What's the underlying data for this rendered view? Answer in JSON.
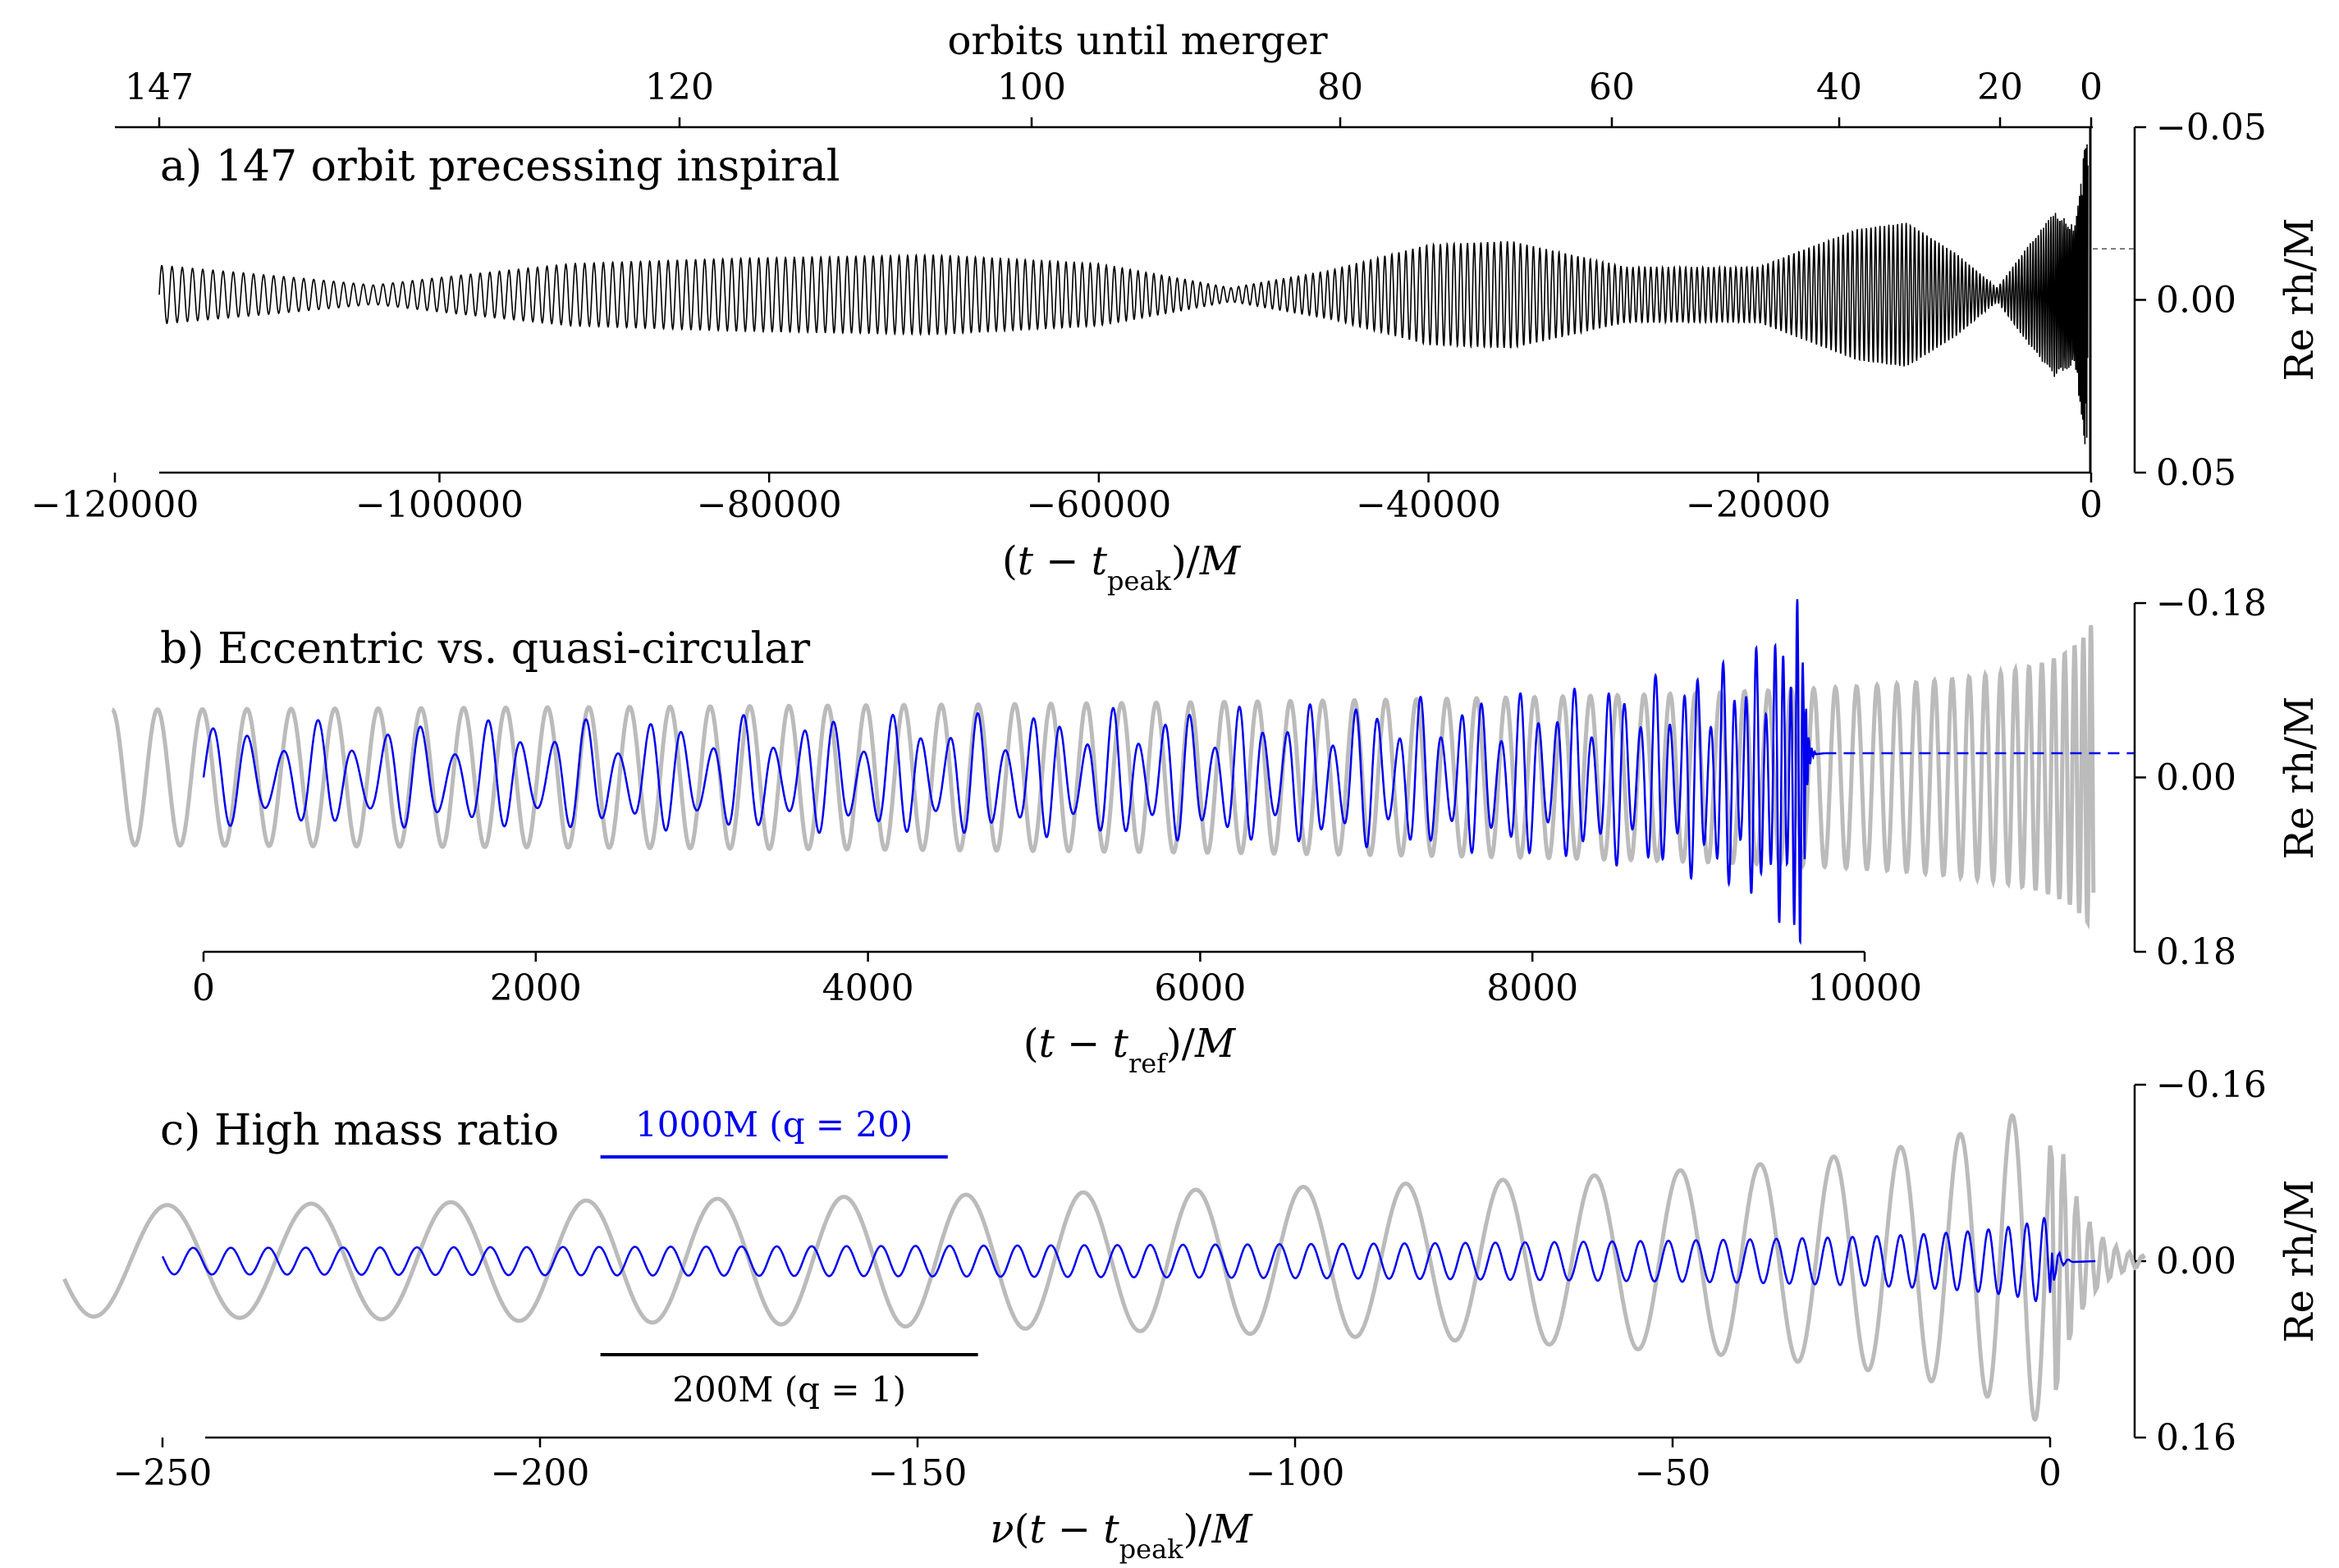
{
  "chart_data": [
    {
      "id": "a",
      "type": "line",
      "title": "a) 147 orbit precessing inspiral",
      "xlabel": "(t − t_peak)/M",
      "ylabel": "Re rh/M",
      "xlim": [
        -117000,
        0
      ],
      "ylim": [
        -0.05,
        0.05
      ],
      "x_ticks": [
        "−120000",
        "−100000",
        "−80000",
        "−60000",
        "−40000",
        "−20000",
        "0"
      ],
      "x_tick_values": [
        -120000,
        -100000,
        -80000,
        -60000,
        -40000,
        -20000,
        0
      ],
      "y_ticks": [
        "−0.05",
        "0.00",
        "0.05"
      ],
      "y_tick_values": [
        -0.05,
        0.0,
        0.05
      ],
      "secondary_x_label": "orbits until merger",
      "secondary_x_ticks": [
        "147",
        "120",
        "100",
        "80",
        "60",
        "40",
        "20",
        "0"
      ],
      "secondary_x_tick_values": [
        147,
        120,
        100,
        80,
        60,
        40,
        20,
        0
      ],
      "envelope": {
        "x": [
          -117000,
          -110000,
          -104000,
          -99000,
          -92000,
          -82000,
          -70000,
          -60000,
          -52000,
          -46000,
          -40000,
          -35000,
          -28000,
          -20000,
          -14000,
          -11000,
          -8000,
          -5500,
          -3500,
          -2000,
          -800,
          0
        ],
        "amplitude": [
          0.0085,
          0.0055,
          0.0028,
          0.0055,
          0.009,
          0.0105,
          0.0115,
          0.009,
          0.002,
          0.007,
          0.0145,
          0.0155,
          0.008,
          0.008,
          0.019,
          0.021,
          0.012,
          0.002,
          0.015,
          0.024,
          0.02,
          0.05
        ]
      },
      "annotations": {
        "dashed_level": 0.0148
      },
      "series": [
        {
          "color": "#000000"
        }
      ]
    },
    {
      "id": "b",
      "type": "line",
      "title": "b) Eccentric vs. quasi-circular",
      "xlabel": "(t − t_ref)/M",
      "ylabel": "Re rh/M",
      "xlim": [
        0,
        10000
      ],
      "ylim": [
        -0.18,
        0.18
      ],
      "x_ticks": [
        "0",
        "2000",
        "4000",
        "6000",
        "8000",
        "10000"
      ],
      "x_tick_values": [
        0,
        2000,
        4000,
        6000,
        8000,
        10000
      ],
      "y_ticks": [
        "−0.18",
        "0.00",
        "0.18"
      ],
      "y_tick_values": [
        -0.18,
        0.0,
        0.18
      ],
      "series": [
        {
          "label": "eccentric",
          "color": "#0000ee",
          "t_merger": 9630,
          "cycles": 72,
          "amp_start": 0.04,
          "amp_peak": 0.18
        },
        {
          "label": "quasi-circular",
          "color": "#bbbbbb",
          "t_start": -550,
          "t_merger": 11380,
          "cycles": 70,
          "amp_start": 0.035,
          "amp_peak": 0.16
        }
      ],
      "annotations": {
        "dashed_level": 0.025
      }
    },
    {
      "id": "c",
      "type": "line",
      "title": "c) High mass ratio",
      "xlabel": "ν(t − t_peak)/M",
      "ylabel": "Re rh/M",
      "xlim": [
        -255,
        0
      ],
      "ylim": [
        -0.16,
        0.16
      ],
      "x_ticks": [
        "−250",
        "−200",
        "−150",
        "−100",
        "−50",
        "0"
      ],
      "x_tick_values": [
        -250,
        -200,
        -150,
        -100,
        -50,
        0
      ],
      "y_ticks": [
        "−0.16",
        "0.00",
        "0.16"
      ],
      "y_tick_values": [
        -0.16,
        0.0,
        0.16
      ],
      "series": [
        {
          "label": "q = 20",
          "color": "#0000ee",
          "x_start": -250,
          "amp_start": 0.012,
          "amp_peak": 0.04
        },
        {
          "label": "q = 1",
          "color": "#bbbbbb",
          "x_start": -263,
          "amp_start": 0.05,
          "amp_peak": 0.16
        }
      ],
      "scale_bars": [
        {
          "label": "1000M (q = 20)",
          "x_from": -192,
          "x_to": -146,
          "color": "#0000ee"
        },
        {
          "label": "200M (q = 1)",
          "x_from": -192,
          "x_to": -142,
          "color": "#000000"
        }
      ]
    }
  ]
}
